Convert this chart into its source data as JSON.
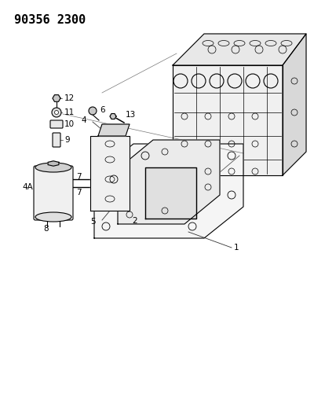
{
  "title": "90356 2300",
  "bg_color": "#ffffff",
  "line_color": "#000000",
  "title_fontsize": 11,
  "title_font_weight": "bold",
  "fig_width": 4.0,
  "fig_height": 5.33,
  "dpi": 100
}
